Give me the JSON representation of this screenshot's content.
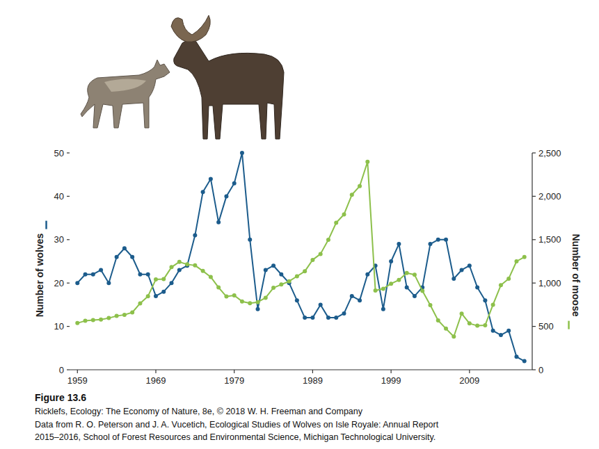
{
  "chart_data": {
    "type": "line",
    "caption": "Figure 13.6",
    "credit": "Ricklefs, Ecology: The Economy of Nature, 8e, © 2018 W. H. Freeman and Company",
    "source": [
      "Data from R. O. Peterson and J. A. Vucetich, Ecological Studies of Wolves on Isle Royale: Annual Report",
      "2015–2016, School of Forest Resources and Environmental Science, Michigan Technological University."
    ],
    "x": [
      1959,
      1960,
      1961,
      1962,
      1963,
      1964,
      1965,
      1966,
      1967,
      1968,
      1969,
      1970,
      1971,
      1972,
      1973,
      1974,
      1975,
      1976,
      1977,
      1978,
      1979,
      1980,
      1981,
      1982,
      1983,
      1984,
      1985,
      1986,
      1987,
      1988,
      1989,
      1990,
      1991,
      1992,
      1993,
      1994,
      1995,
      1996,
      1997,
      1998,
      1999,
      2000,
      2001,
      2002,
      2003,
      2004,
      2005,
      2006,
      2007,
      2008,
      2009,
      2010,
      2011,
      2012,
      2013,
      2014,
      2015,
      2016
    ],
    "xlim": [
      1958,
      2017
    ],
    "xticks": [
      1959,
      1969,
      1979,
      1989,
      1999,
      2009
    ],
    "ylim": [
      0,
      50
    ],
    "yticks": [
      0,
      10,
      20,
      30,
      40,
      50
    ],
    "y2lim": [
      0,
      2500
    ],
    "y2ticks": [
      0,
      500,
      {
        "value": 1000,
        "label": "1,000"
      },
      {
        "value": 1500,
        "label": "1,500"
      },
      {
        "value": 2000,
        "label": "2,000"
      },
      {
        "value": 2500,
        "label": "2,500"
      }
    ],
    "series": [
      {
        "name": "Number of wolves",
        "color": "#1c5c8c",
        "marker": "circle",
        "values": [
          20,
          22,
          22,
          23,
          20,
          26,
          28,
          26,
          22,
          22,
          17,
          18,
          20,
          23,
          24,
          31,
          41,
          44,
          34,
          40,
          43,
          50,
          30,
          14,
          23,
          24,
          22,
          20,
          16,
          12,
          12,
          15,
          12,
          12,
          13,
          17,
          16,
          22,
          24,
          14,
          25,
          29,
          19,
          17,
          19,
          29,
          30,
          30,
          21,
          23,
          24,
          19,
          16,
          9,
          8,
          9,
          3,
          2
        ]
      },
      {
        "name": "Number of moose",
        "color": "#8dc04b",
        "marker": "circle",
        "axis": "y2",
        "values": [
          538,
          564,
          572,
          579,
          596,
          620,
          634,
          661,
          766,
          848,
          1041,
          1045,
          1183,
          1243,
          1215,
          1203,
          1139,
          1070,
          949,
          845,
          857,
          788,
          767,
          780,
          830,
          945,
          983,
          1020,
          1078,
          1135,
          1267,
          1335,
          1498,
          1695,
          1791,
          2017,
          2117,
          2398,
          914,
          934,
          992,
          1035,
          1116,
          1095,
          910,
          745,
          569,
          474,
          383,
          648,
          534,
          508,
          513,
          750,
          975,
          1050,
          1250,
          1300
        ]
      }
    ]
  }
}
